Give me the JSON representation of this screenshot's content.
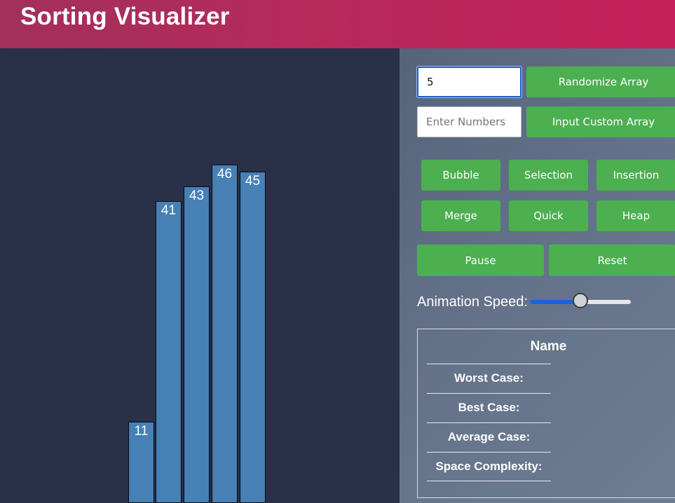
{
  "app": {
    "title": "Sorting Visualizer"
  },
  "bars": [
    {
      "value": 11
    },
    {
      "value": 41
    },
    {
      "value": 43
    },
    {
      "value": 46
    },
    {
      "value": 45
    }
  ],
  "controls": {
    "size_input_value": "5",
    "custom_input_placeholder": "Enter Numbers",
    "randomize_label": "Randomize Array",
    "custom_label": "Input Custom Array",
    "algorithms": [
      "Bubble",
      "Selection",
      "Insertion",
      "Merge",
      "Quick",
      "Heap"
    ],
    "pause_label": "Pause",
    "reset_label": "Reset",
    "speed_label": "Animation Speed:",
    "speed_fraction": 0.5
  },
  "complexity": {
    "name_label": "Name",
    "worst_label": "Worst Case:",
    "best_label": "Best Case:",
    "average_label": "Average Case:",
    "space_label": "Space Complexity:"
  },
  "colors": {
    "bar": "#4680b5",
    "button": "#4caf50",
    "header_start": "#a2305a",
    "header_end": "#c41f58",
    "background": "#293048"
  }
}
